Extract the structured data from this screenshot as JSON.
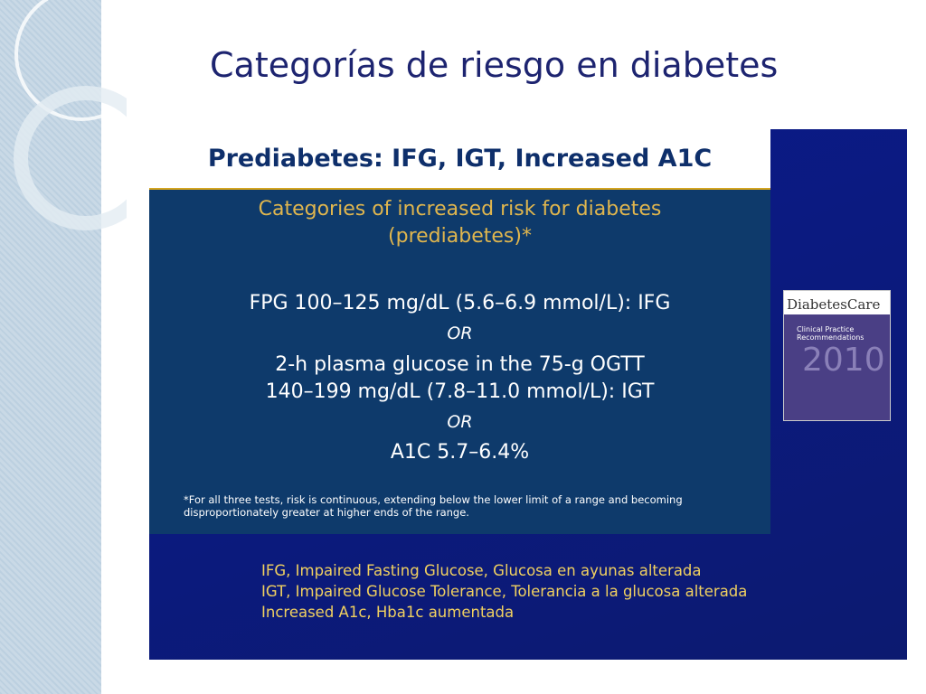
{
  "slide": {
    "title": "Categorías de riesgo en diabetes",
    "inner": {
      "header": "Prediabetes: IFG, IGT, Increased A1C",
      "subtitle_lines": [
        "Categories of increased risk for diabetes",
        "(prediabetes)*"
      ],
      "criteria": [
        "FPG 100–125 mg/dL (5.6–6.9 mmol/L): IFG",
        "OR",
        "2-h plasma glucose in the 75-g OGTT",
        "140–199 mg/dL (7.8–11.0 mmol/L): IGT",
        "OR",
        "A1C 5.7–6.4%"
      ],
      "footnote_lines": [
        "*For all three tests, risk is continuous, extending below the lower limit of a range and becoming",
        "disproportionately greater at higher ends of the range."
      ]
    },
    "cover": {
      "title": "DiabetesCare",
      "subtitle": "Clinical Practice Recommendations",
      "year": "2010"
    },
    "glossary": [
      "IFG, Impaired Fasting Glucose, Glucosa en ayunas alterada",
      "IGT, Impaired Glucose Tolerance, Tolerancia a la glucosa alterada",
      "Increased A1c, Hba1c aumentada"
    ]
  }
}
